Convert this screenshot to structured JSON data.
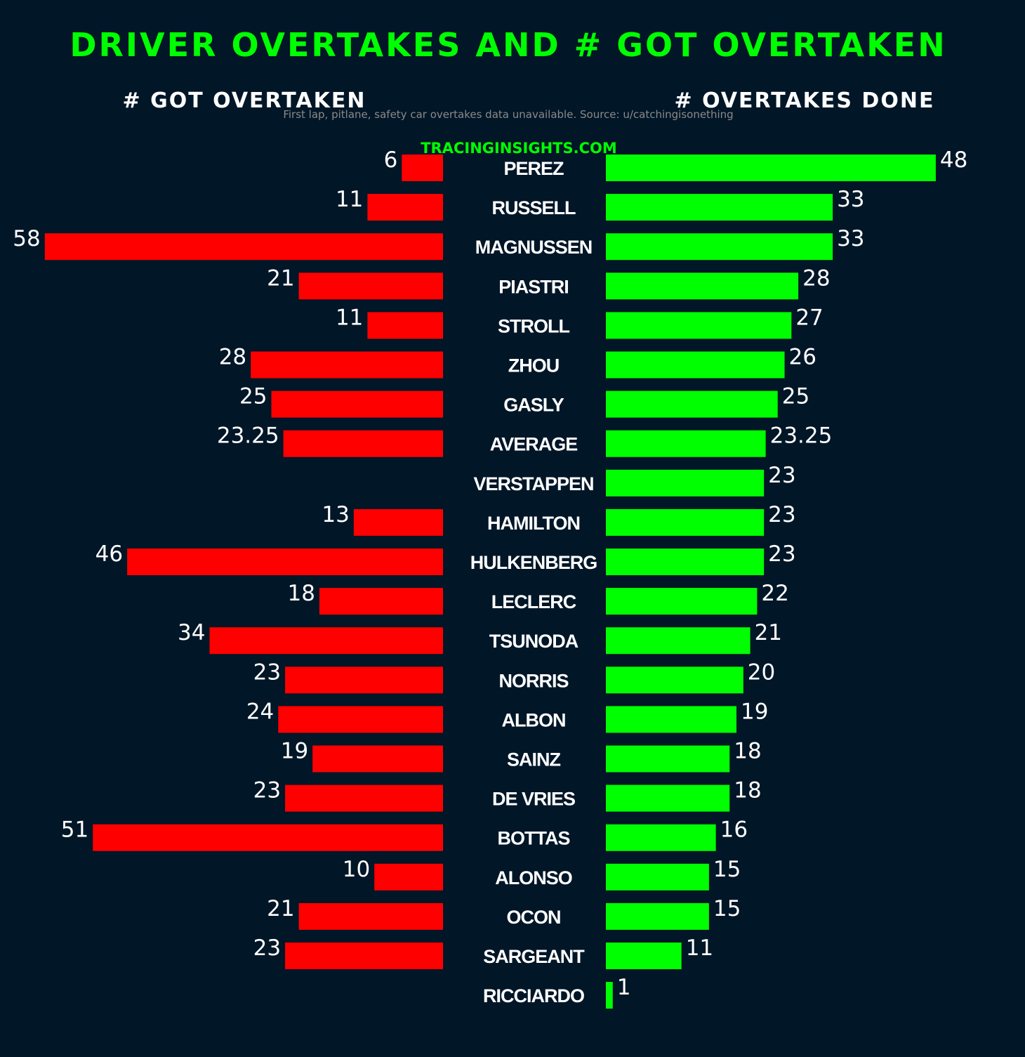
{
  "chart_data": {
    "type": "bar",
    "title": "DRIVER OVERTAKES AND # GOT OVERTAKEN",
    "left_panel_title": "# GOT OVERTAKEN",
    "right_panel_title": "# OVERTAKES DONE",
    "note": "First lap, pitlane, safety car overtakes data unavailable. Source: u/catchingisonething",
    "watermark": "TRACINGINSIGHTS.COM",
    "categories": [
      "PEREZ",
      "RUSSELL",
      "MAGNUSSEN",
      "PIASTRI",
      "STROLL",
      "ZHOU",
      "GASLY",
      "AVERAGE",
      "VERSTAPPEN",
      "HAMILTON",
      "HULKENBERG",
      "LECLERC",
      "TSUNODA",
      "NORRIS",
      "ALBON",
      "SAINZ",
      "DE VRIES",
      "BOTTAS",
      "ALONSO",
      "OCON",
      "SARGEANT",
      "RICCIARDO"
    ],
    "series": [
      {
        "name": "# GOT OVERTAKEN",
        "color": "#ff0000",
        "values": [
          6,
          11,
          58,
          21,
          11,
          28,
          25,
          23.25,
          null,
          13,
          46,
          18,
          34,
          23,
          24,
          19,
          23,
          51,
          10,
          21,
          23,
          null
        ]
      },
      {
        "name": "# OVERTAKES DONE",
        "color": "#00ff00",
        "values": [
          48,
          33,
          33,
          28,
          27,
          26,
          25,
          23.25,
          23,
          23,
          23,
          22,
          21,
          20,
          19,
          18,
          18,
          16,
          15,
          15,
          11,
          1
        ]
      }
    ],
    "grid": false,
    "background": "#011627"
  }
}
